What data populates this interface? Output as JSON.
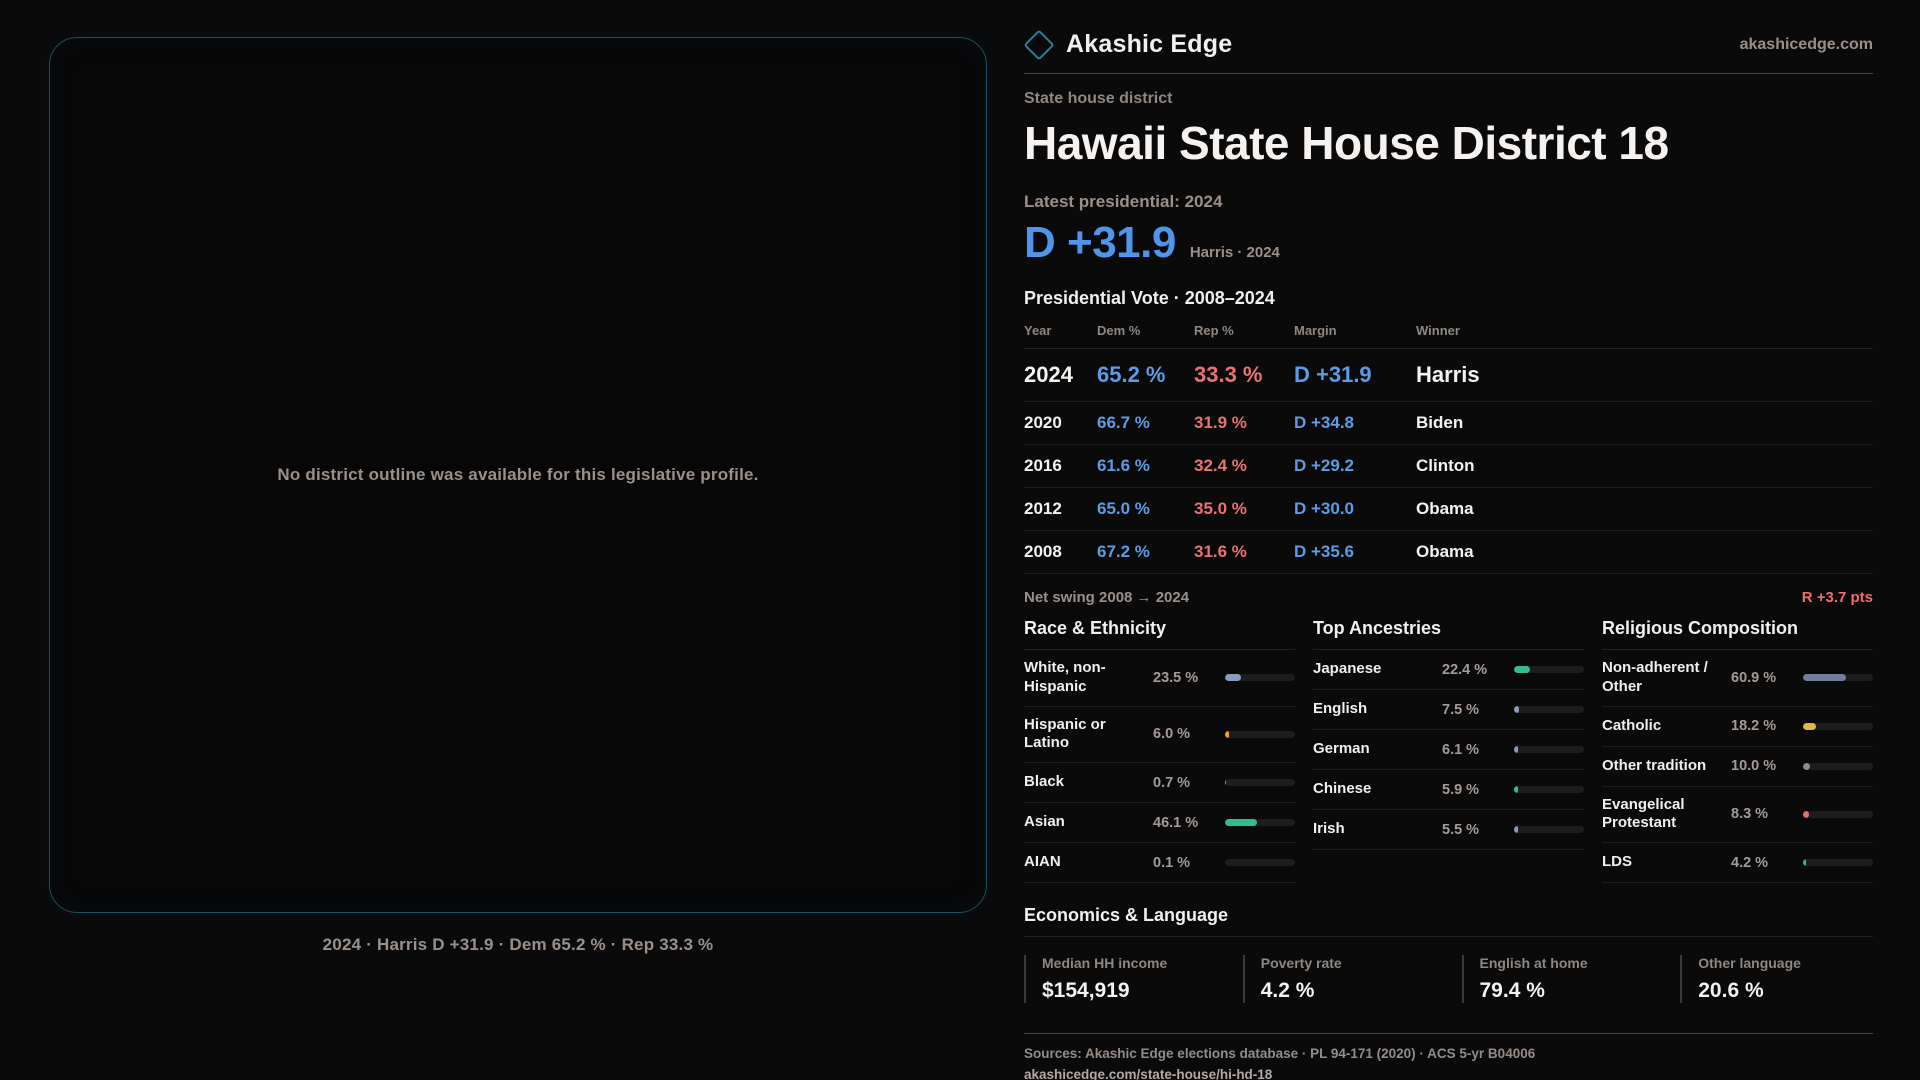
{
  "brand": {
    "name": "Akashic Edge",
    "domain": "akashicedge.com",
    "accent_teal": "#2d7f93",
    "dem_blue": "#5c9ce4",
    "rep_red": "#e97272"
  },
  "map": {
    "placeholder": "No district outline was available for this legislative profile.",
    "caption": "2024 · Harris D +31.9 · Dem 65.2 % · Rep 33.3 %"
  },
  "header": {
    "eyebrow": "State house district",
    "title": "Hawaii State House District 18",
    "latest_label": "Latest presidential: 2024",
    "margin_value": "D +31.9",
    "margin_detail": "Harris · 2024"
  },
  "table": {
    "title": "Presidential Vote · 2008–2024",
    "columns": [
      "Year",
      "Dem %",
      "Rep %",
      "Margin",
      "Winner"
    ],
    "rows": [
      {
        "year": "2024",
        "dem": "65.2 %",
        "rep": "33.3 %",
        "margin": "D +31.9",
        "winner": "Harris",
        "featured": true
      },
      {
        "year": "2020",
        "dem": "66.7 %",
        "rep": "31.9 %",
        "margin": "D +34.8",
        "winner": "Biden",
        "featured": false
      },
      {
        "year": "2016",
        "dem": "61.6 %",
        "rep": "32.4 %",
        "margin": "D +29.2",
        "winner": "Clinton",
        "featured": false
      },
      {
        "year": "2012",
        "dem": "65.0 %",
        "rep": "35.0 %",
        "margin": "D +30.0",
        "winner": "Obama",
        "featured": false
      },
      {
        "year": "2008",
        "dem": "67.2 %",
        "rep": "31.6 %",
        "margin": "D +35.6",
        "winner": "Obama",
        "featured": false
      }
    ]
  },
  "net_swing": {
    "label": "Net swing 2008 → 2024",
    "value": "R +3.7 pts"
  },
  "demographics": [
    {
      "title": "Race & Ethnicity",
      "items": [
        {
          "label": "White, non-Hispanic",
          "value": "23.5 %",
          "pct": 23.5,
          "color": "#8b9dbe"
        },
        {
          "label": "Hispanic or Latino",
          "value": "6.0 %",
          "pct": 6.0,
          "color": "#ed9f2e"
        },
        {
          "label": "Black",
          "value": "0.7 %",
          "pct": 0.7,
          "color": "#8b9dbe"
        },
        {
          "label": "Asian",
          "value": "46.1 %",
          "pct": 46.1,
          "color": "#34bd8c"
        },
        {
          "label": "AIAN",
          "value": "0.1 %",
          "pct": 0.1,
          "color": "#8b9dbe"
        }
      ]
    },
    {
      "title": "Top Ancestries",
      "items": [
        {
          "label": "Japanese",
          "value": "22.4 %",
          "pct": 22.4,
          "color": "#34bd8c"
        },
        {
          "label": "English",
          "value": "7.5 %",
          "pct": 7.5,
          "color": "#8b9dbe"
        },
        {
          "label": "German",
          "value": "6.1 %",
          "pct": 6.1,
          "color": "#8b9dbe"
        },
        {
          "label": "Chinese",
          "value": "5.9 %",
          "pct": 5.9,
          "color": "#34bd8c"
        },
        {
          "label": "Irish",
          "value": "5.5 %",
          "pct": 5.5,
          "color": "#8b9dbe"
        }
      ]
    },
    {
      "title": "Religious Composition",
      "items": [
        {
          "label": "Non-adherent / Other",
          "value": "60.9 %",
          "pct": 60.9,
          "color": "#6f7e9b"
        },
        {
          "label": "Catholic",
          "value": "18.2 %",
          "pct": 18.2,
          "color": "#e2b93f"
        },
        {
          "label": "Other tradition",
          "value": "10.0 %",
          "pct": 10.0,
          "color": "#8d8d8d"
        },
        {
          "label": "Evangelical Protestant",
          "value": "8.3 %",
          "pct": 8.3,
          "color": "#e66c6c"
        },
        {
          "label": "LDS",
          "value": "4.2 %",
          "pct": 4.2,
          "color": "#2cb5a8"
        }
      ]
    }
  ],
  "economics": {
    "title": "Economics & Language",
    "stats": [
      {
        "label": "Median HH income",
        "value": "$154,919"
      },
      {
        "label": "Poverty rate",
        "value": "4.2 %"
      },
      {
        "label": "English at home",
        "value": "79.4 %"
      },
      {
        "label": "Other language",
        "value": "20.6 %"
      }
    ]
  },
  "footer": {
    "sources": "Sources: Akashic Edge elections database · PL 94-171 (2020) · ACS 5-yr B04006",
    "permalink": "akashicedge.com/state-house/hi-hd-18"
  }
}
